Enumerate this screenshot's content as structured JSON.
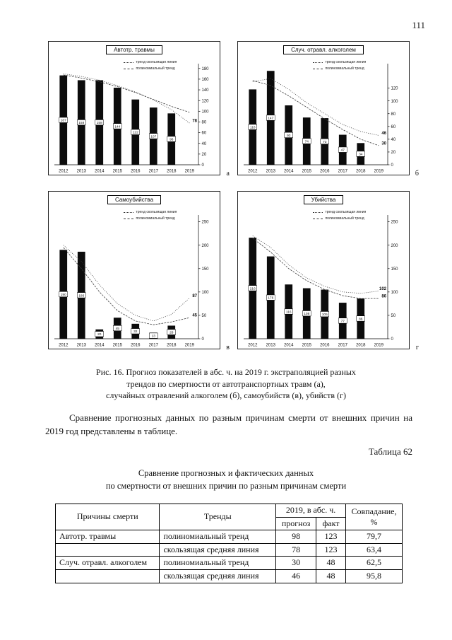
{
  "page": {
    "number": "111"
  },
  "figure": {
    "caption_lines": [
      "Рис. 16. Прогноз показателей в абс. ч. на 2019 г. экстраполяцией разных",
      "трендов по смертности от автотранспортных травм (а),",
      "случайных отравлений алкоголем (б), самоубийств (в), убийств (г)"
    ],
    "panel_letters": [
      "а",
      "б",
      "в",
      "г"
    ]
  },
  "paragraph": "Сравнение прогнозных данных по разным причинам смерти от внешних причин на 2019 год представлены в таблице.",
  "table_label": "Таблица 62",
  "table": {
    "title_lines": [
      "Сравнение прогнозных и фактических данных",
      "по смертности от внешних причин по разным причинам смерти"
    ],
    "header": {
      "causes": "Причины смерти",
      "trends": "Тренды",
      "abs": "2019, в абс. ч.",
      "forecast": "прогноз",
      "fact": "факт",
      "match": "Совпадание, %"
    },
    "rows": [
      [
        "Автотр. травмы",
        "полиномиальный тренд",
        "98",
        "123",
        "79,7"
      ],
      [
        "",
        "скользящая средняя линия",
        "78",
        "123",
        "63,4"
      ],
      [
        "Случ. отравл. алкоголем",
        "полиномиальный тренд",
        "30",
        "48",
        "62,5"
      ],
      [
        "",
        "скользящая средняя линия",
        "46",
        "48",
        "95,8"
      ]
    ]
  },
  "chart_data": [
    {
      "type": "bar",
      "title": "Автотр. травмы",
      "categories": [
        "2012",
        "2013",
        "2014",
        "2015",
        "2016",
        "2017",
        "2018",
        "2019"
      ],
      "values": [
        167,
        158,
        158,
        144,
        122,
        107,
        96,
        null
      ],
      "ymax": 185,
      "yticks": [
        0,
        20,
        40,
        60,
        80,
        100,
        120,
        140,
        160,
        180
      ],
      "legend": [
        "тренд скользящая линия",
        "полиномиальный тренд"
      ],
      "trends": [
        {
          "name": "тренд скользящая линия",
          "style": "dotted",
          "values": [
            170,
            165,
            158,
            148,
            136,
            121,
            103,
            78
          ]
        },
        {
          "name": "полиномиальный тренд",
          "style": "dashed",
          "values": [
            168,
            162,
            155,
            146,
            135,
            122,
            109,
            98
          ]
        }
      ],
      "annotations": [
        {
          "label": "78",
          "y": 78
        }
      ]
    },
    {
      "type": "bar",
      "title": "Случ. отравл. алкоголем",
      "categories": [
        "2012",
        "2013",
        "2014",
        "2015",
        "2016",
        "2017",
        "2018",
        "2019"
      ],
      "values": [
        118,
        147,
        93,
        74,
        73,
        47,
        34,
        null
      ],
      "ymax": 155,
      "yticks": [
        0,
        20,
        40,
        60,
        80,
        100,
        120
      ],
      "legend": [
        "тренд скользящая линия",
        "полиномиальный тренд"
      ],
      "trends": [
        {
          "name": "тренд скользящая линия",
          "style": "dotted",
          "values": [
            130,
            135,
            118,
            97,
            80,
            63,
            52,
            46
          ]
        },
        {
          "name": "полиномиальный тренд",
          "style": "dashed",
          "values": [
            132,
            124,
            108,
            90,
            72,
            55,
            40,
            30
          ]
        }
      ],
      "annotations": [
        {
          "label": "46",
          "y": 46
        },
        {
          "label": "30",
          "y": 30
        }
      ]
    },
    {
      "type": "bar",
      "title": "Самоубийства",
      "categories": [
        "2012",
        "2013",
        "2014",
        "2015",
        "2016",
        "2017",
        "2018",
        "2019"
      ],
      "values": [
        190,
        186,
        20,
        45,
        32,
        13,
        28,
        null
      ],
      "ymax": 260,
      "yticks": [
        0,
        50,
        100,
        150,
        200,
        250
      ],
      "legend": [
        "тренд скользящая линия",
        "полиномиальный тренд"
      ],
      "trends": [
        {
          "name": "тренд скользящая линия",
          "style": "dotted",
          "values": [
            200,
            165,
            115,
            75,
            50,
            38,
            52,
            87
          ]
        },
        {
          "name": "полиномиальный тренд",
          "style": "dashed",
          "values": [
            195,
            150,
            100,
            60,
            38,
            30,
            36,
            45
          ]
        }
      ],
      "annotations": [
        {
          "label": "87",
          "y": 87
        },
        {
          "label": "45",
          "y": 45
        }
      ]
    },
    {
      "type": "bar",
      "title": "Убийства",
      "categories": [
        "2012",
        "2013",
        "2014",
        "2015",
        "2016",
        "2017",
        "2018",
        "2019"
      ],
      "values": [
        216,
        176,
        116,
        108,
        105,
        77,
        86,
        null
      ],
      "ymax": 260,
      "yticks": [
        0,
        50,
        100,
        150,
        200,
        250
      ],
      "legend": [
        "тренд скользящая линия",
        "полиномиальный тренд"
      ],
      "trends": [
        {
          "name": "тренд скользящая линия",
          "style": "dotted",
          "values": [
            220,
            195,
            158,
            130,
            112,
            100,
            97,
            102
          ]
        },
        {
          "name": "полиномиальный тренд",
          "style": "dashed",
          "values": [
            215,
            185,
            150,
            124,
            105,
            92,
            86,
            86
          ]
        }
      ],
      "annotations": [
        {
          "label": "102",
          "y": 102
        },
        {
          "label": "86",
          "y": 86
        }
      ]
    }
  ]
}
